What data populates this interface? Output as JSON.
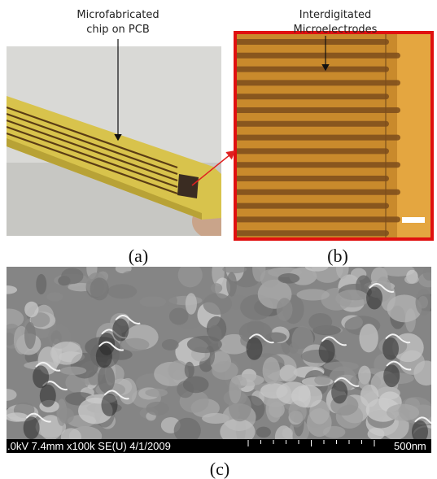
{
  "panel_a": {
    "annotation_lines": [
      "Microfabricated",
      "chip on PCB"
    ],
    "label": "(a)"
  },
  "panel_b": {
    "annotation_lines": [
      "Interdigitated",
      "Microelectrodes"
    ],
    "label": "(b)"
  },
  "panel_c": {
    "info_bar": ".0kV 7.4mm x100k SE(U) 4/1/2009",
    "scale_text": "500nm",
    "label": "(c)"
  }
}
